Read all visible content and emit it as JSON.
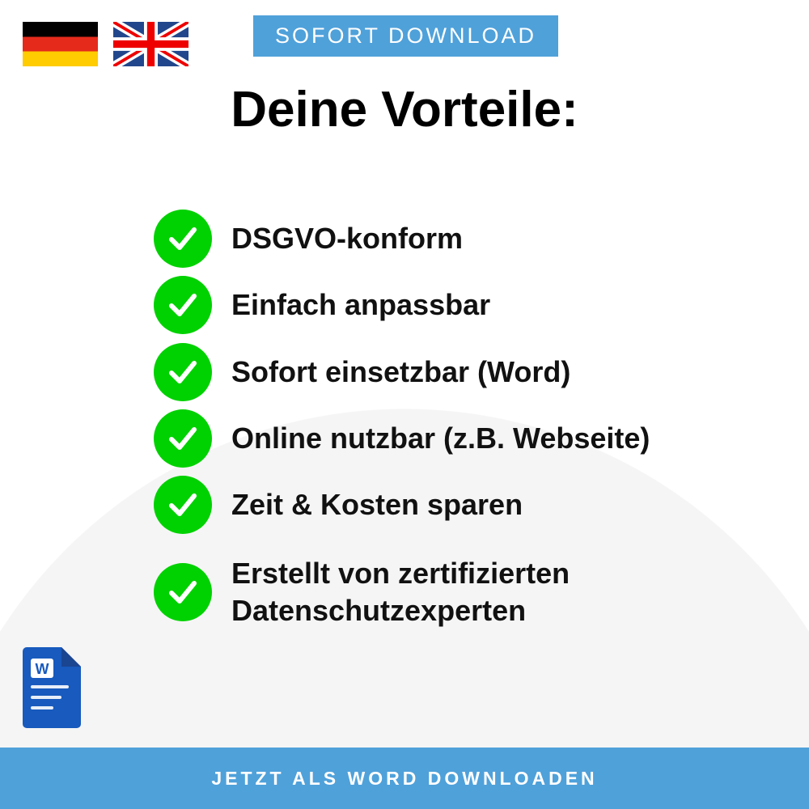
{
  "header": {
    "badge": "SOFORT DOWNLOAD",
    "title": "Deine Vorteile:",
    "flags": [
      "german-flag",
      "uk-flag"
    ]
  },
  "benefits": [
    {
      "label": "DSGVO-konform"
    },
    {
      "label": "Einfach anpassbar"
    },
    {
      "label": "Sofort einsetzbar (Word)"
    },
    {
      "label": "Online nutzbar (z.B. Webseite)"
    },
    {
      "label": "Zeit & Kosten sparen"
    },
    {
      "label": "Erstellt von zertifizierten",
      "label2": "Datenschutzexperten"
    }
  ],
  "footer": {
    "cta": "JETZT ALS WORD DOWNLOADEN"
  },
  "colors": {
    "accent": "#4fa1da",
    "check": "#00d100",
    "word": "#185abd"
  }
}
